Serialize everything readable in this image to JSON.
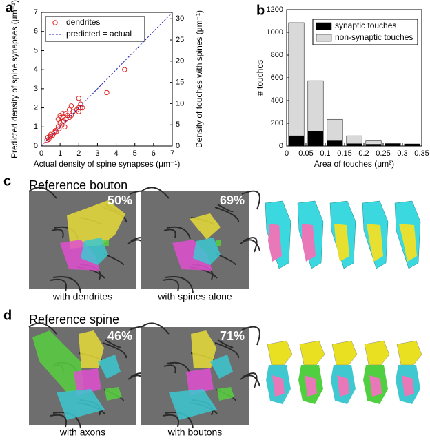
{
  "panel_labels": [
    "a",
    "b",
    "c",
    "d"
  ],
  "chart_data": [
    {
      "type": "scatter",
      "xlabel": "Actual density of spine synapses (μm⁻¹)",
      "ylabel": "Predicted density of spine synapses (μm⁻¹)",
      "y2label": "Density of touches with spines (μm⁻¹)",
      "xlim": [
        0,
        7
      ],
      "xticks": [
        0,
        1,
        2,
        3,
        4,
        5,
        6,
        7
      ],
      "ylim": [
        0,
        7
      ],
      "yticks": [
        0,
        1,
        2,
        3,
        4,
        5,
        6,
        7
      ],
      "y2lim": [
        0,
        31.5
      ],
      "y2ticks": [
        0,
        5,
        10,
        15,
        20,
        25,
        30
      ],
      "legend": "upper left",
      "series": [
        {
          "name": "dendrites",
          "color": "#e02020",
          "marker": "circle",
          "x": [
            0.3,
            0.35,
            0.4,
            0.5,
            0.5,
            0.6,
            0.7,
            0.75,
            0.8,
            0.9,
            0.9,
            1.0,
            1.0,
            1.05,
            1.1,
            1.15,
            1.2,
            1.3,
            1.3,
            1.4,
            1.5,
            1.5,
            1.6,
            1.6,
            1.7,
            1.9,
            2.0,
            2.0,
            2.0,
            2.1,
            2.2,
            2.1,
            3.5,
            4.45,
            0.95,
            1.25
          ],
          "values": [
            0.3,
            0.45,
            0.35,
            0.5,
            0.6,
            0.55,
            0.7,
            0.8,
            0.75,
            1.0,
            1.4,
            1.6,
            1.2,
            1.5,
            1.1,
            1.7,
            1.3,
            1.4,
            1.7,
            1.6,
            1.5,
            1.9,
            2.1,
            1.6,
            1.8,
            1.9,
            2.0,
            1.8,
            2.5,
            2.0,
            2.0,
            2.2,
            2.8,
            4.0,
            0.9,
            1.0
          ]
        },
        {
          "name": "predicted = actual",
          "color": "#2020b0",
          "marker": "dashed-line",
          "x": [
            0,
            7
          ],
          "values": [
            0,
            7
          ]
        }
      ]
    },
    {
      "type": "bar",
      "stacked": true,
      "xlabel": "Area of touches (μm²)",
      "ylabel": "# touches",
      "x": [
        0.025,
        0.075,
        0.125,
        0.175,
        0.225,
        0.275,
        0.325
      ],
      "xlim": [
        0,
        0.35
      ],
      "xticks": [
        0,
        0.05,
        0.1,
        0.15,
        0.2,
        0.25,
        0.3,
        0.35
      ],
      "ylim": [
        0,
        1200
      ],
      "yticks": [
        0,
        200,
        400,
        600,
        800,
        1000,
        1200
      ],
      "legend": "upper right",
      "series": [
        {
          "name": "synaptic touches",
          "color": "#000000",
          "values": [
            90,
            130,
            45,
            20,
            15,
            20,
            15
          ]
        },
        {
          "name": "non-synaptic touches",
          "color": "#d9d9d9",
          "values": [
            995,
            445,
            190,
            70,
            30,
            5,
            3
          ]
        }
      ]
    }
  ],
  "panel_c": {
    "title": "Reference bouton",
    "images": [
      {
        "percent": "50%",
        "caption": "with dendrites"
      },
      {
        "percent": "69%",
        "caption": "with spines alone"
      }
    ]
  },
  "panel_d": {
    "title": "Reference spine",
    "images": [
      {
        "percent": "46%",
        "caption": "with axons"
      },
      {
        "percent": "71%",
        "caption": "with boutons"
      }
    ]
  }
}
